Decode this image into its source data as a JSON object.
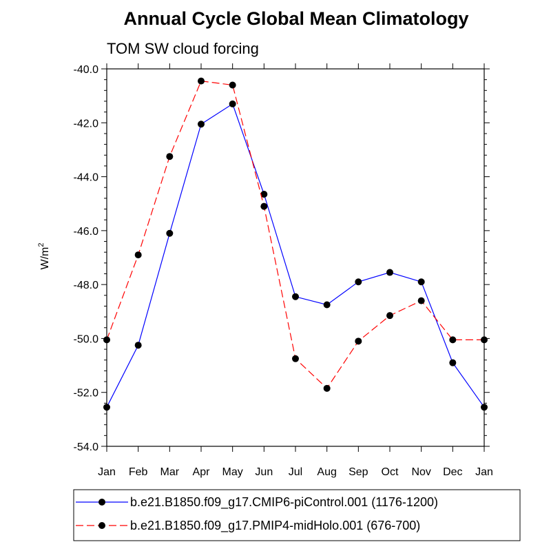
{
  "chart_data": {
    "type": "line",
    "title": "Annual Cycle Global Mean Climatology",
    "subtitle": "TOM SW cloud forcing",
    "ylabel_base": "W/m",
    "ylabel_sup": "2",
    "xlabel": "",
    "categories": [
      "Jan",
      "Feb",
      "Mar",
      "Apr",
      "May",
      "Jun",
      "Jul",
      "Aug",
      "Sep",
      "Oct",
      "Nov",
      "Dec",
      "Jan"
    ],
    "ylim": [
      -54.0,
      -40.0
    ],
    "yticks": [
      "-40.0",
      "-42.0",
      "-44.0",
      "-46.0",
      "-48.0",
      "-50.0",
      "-52.0",
      "-54.0"
    ],
    "ytick_values": [
      -40,
      -42,
      -44,
      -46,
      -48,
      -50,
      -52,
      -54
    ],
    "grid": false,
    "legend_position": "bottom",
    "series": [
      {
        "name": "b.e21.B1850.f09_g17.CMIP6-piControl.001 (1176-1200)",
        "color": "#0000ff",
        "dash": "solid",
        "marker": "filled-circle",
        "values": [
          -52.55,
          -50.25,
          -46.1,
          -42.05,
          -41.3,
          -44.65,
          -48.45,
          -48.75,
          -47.9,
          -47.55,
          -47.9,
          -50.9,
          -52.55
        ]
      },
      {
        "name": "b.e21.B1850.f09_g17.PMIP4-midHolo.001 (676-700)",
        "color": "#ff0000",
        "dash": "dashed",
        "marker": "filled-circle",
        "values": [
          -50.05,
          -46.9,
          -43.25,
          -40.45,
          -40.6,
          -45.1,
          -50.75,
          -51.85,
          -50.1,
          -49.15,
          -48.6,
          -50.05,
          -50.05
        ]
      }
    ]
  }
}
